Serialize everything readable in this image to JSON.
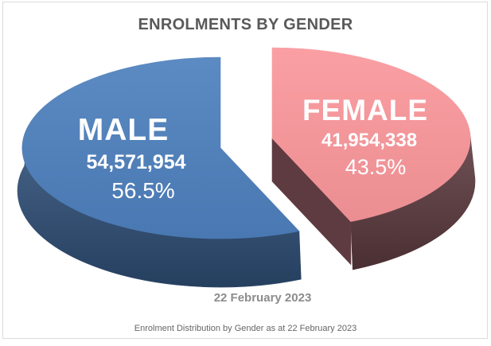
{
  "title": "ENROLMENTS BY GENDER",
  "date_label": "22 February 2023",
  "caption": "Enrolment Distribution by Gender as at 22 February 2023",
  "frame": {
    "border_color": "#dcdcdc",
    "background": "#ffffff"
  },
  "text_colors": {
    "title": "#595959",
    "date": "#8c8c8c",
    "caption": "#666666",
    "slice_text": "#ffffff"
  },
  "chart_data": {
    "type": "pie",
    "style": "3d-exploded",
    "title": "ENROLMENTS BY GENDER",
    "as_at": "22 February 2023",
    "legend_position": "none",
    "start_angle_deg": 0,
    "slices": [
      {
        "label": "MALE",
        "value": 54571954,
        "value_display": "54,571,954",
        "percent": 56.5,
        "percent_display": "56.5%",
        "top_color": "#4E80BD",
        "side_color": "#30517A",
        "exploded": false
      },
      {
        "label": "FEMALE",
        "value": 41954338,
        "value_display": "41,954,338",
        "percent": 43.5,
        "percent_display": "43.5%",
        "top_color": "#FA979B",
        "side_color": "#5E3B40",
        "exploded": true
      }
    ]
  }
}
